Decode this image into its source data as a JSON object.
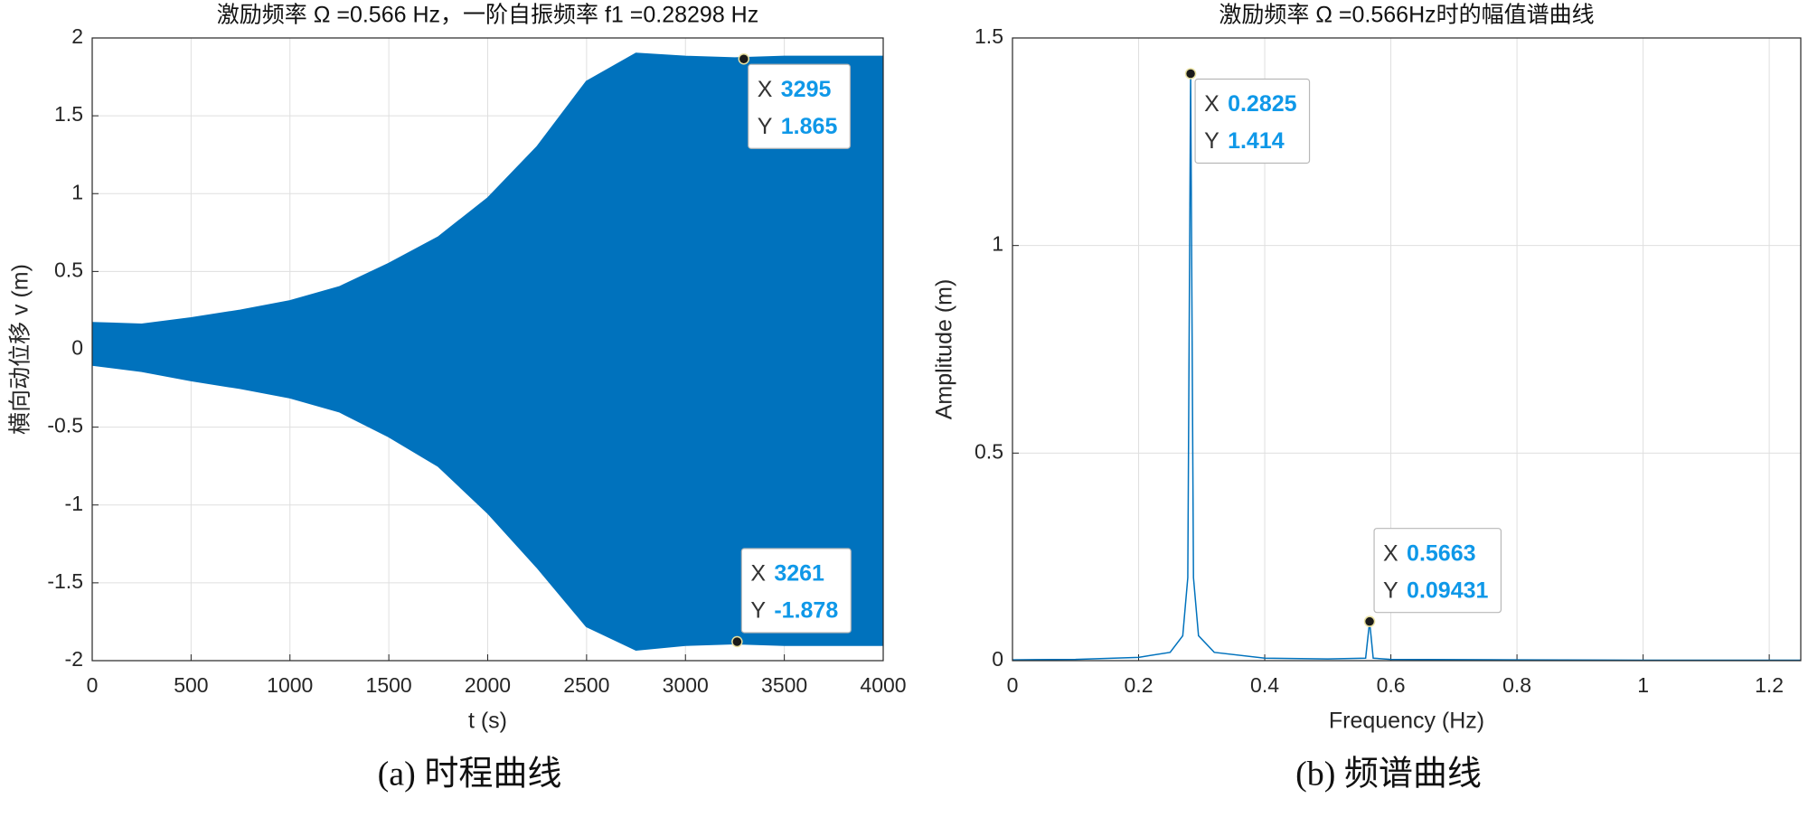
{
  "chart_data": [
    {
      "type": "area",
      "title": "激励频率 Ω =0.566 Hz，一阶自振频率  f1 =0.28298 Hz",
      "xlabel": "t (s)",
      "ylabel": "横向动位移 v (m)",
      "caption": "(a) 时程曲线",
      "x": [
        0,
        250,
        500,
        750,
        1000,
        1250,
        1500,
        1750,
        2000,
        2250,
        2500,
        2750,
        3000,
        3250,
        3500,
        3750,
        4000
      ],
      "series": [
        {
          "color": "#0072bd",
          "values": [
            0.17,
            0.16,
            0.2,
            0.25,
            0.31,
            0.4,
            0.55,
            0.72,
            0.97,
            1.3,
            1.72,
            1.9,
            1.88,
            1.87,
            1.88,
            1.88,
            1.88
          ]
        },
        {
          "color": "#0072bd",
          "values": [
            -0.1,
            -0.14,
            -0.2,
            -0.25,
            -0.31,
            -0.4,
            -0.56,
            -0.75,
            -1.05,
            -1.4,
            -1.78,
            -1.93,
            -1.9,
            -1.89,
            -1.9,
            -1.9,
            -1.9
          ]
        }
      ],
      "xlim": [
        0,
        4000
      ],
      "ylim": [
        -2,
        2
      ],
      "xticks": [
        0,
        500,
        1000,
        1500,
        2000,
        2500,
        3000,
        3500,
        4000
      ],
      "yticks": [
        -2,
        -1.5,
        -1,
        -0.5,
        0,
        0.5,
        1,
        1.5,
        2
      ],
      "grid": true,
      "tip_labels": [
        "X",
        "Y"
      ],
      "datatips": [
        {
          "x": 3295,
          "y": 1.865
        },
        {
          "x": 3261,
          "y": -1.878
        }
      ]
    },
    {
      "type": "line",
      "title": "激励频率 Ω =0.566Hz时的幅值谱曲线",
      "xlabel": "Frequency (Hz)",
      "ylabel": "Amplitude (m)",
      "caption": "(b) 频谱曲线",
      "x": [
        0,
        0.1,
        0.2,
        0.25,
        0.27,
        0.278,
        0.2825,
        0.287,
        0.295,
        0.32,
        0.4,
        0.5,
        0.56,
        0.5663,
        0.572,
        0.6,
        0.8,
        1.0,
        1.25
      ],
      "series": [
        {
          "color": "#0072bd",
          "values": [
            0.002,
            0.003,
            0.008,
            0.02,
            0.06,
            0.2,
            1.414,
            0.2,
            0.06,
            0.02,
            0.006,
            0.004,
            0.006,
            0.09431,
            0.006,
            0.003,
            0.002,
            0.001,
            0.001
          ]
        }
      ],
      "xlim": [
        0,
        1.25
      ],
      "ylim": [
        0,
        1.5
      ],
      "xticks": [
        0,
        0.2,
        0.4,
        0.6,
        0.8,
        1,
        1.2
      ],
      "yticks": [
        0,
        0.5,
        1,
        1.5
      ],
      "grid": true,
      "tip_labels": [
        "X",
        "Y"
      ],
      "datatips": [
        {
          "x": 0.2825,
          "y": 1.414
        },
        {
          "x": 0.5663,
          "y": 0.09431
        }
      ]
    }
  ]
}
